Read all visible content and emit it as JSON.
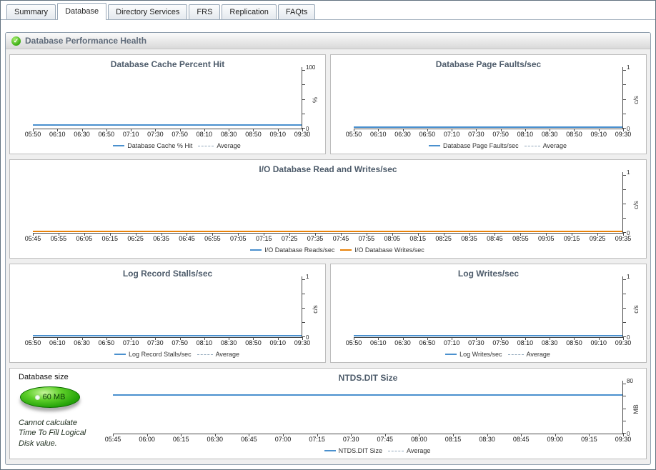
{
  "tabs": [
    {
      "label": "Summary",
      "active": false
    },
    {
      "label": "Database",
      "active": true
    },
    {
      "label": "Directory Services",
      "active": false
    },
    {
      "label": "FRS",
      "active": false
    },
    {
      "label": "Replication",
      "active": false
    },
    {
      "label": "FAQts",
      "active": false
    }
  ],
  "section": {
    "title": "Database Performance Health"
  },
  "colors": {
    "line_blue": "#4a90ce",
    "line_orange": "#e8820a",
    "average_dash": "#8fa6ba"
  },
  "database_size": {
    "label": "Database size",
    "gauge_value": "60 MB",
    "note": "Cannot calculate Time To Fill Logical Disk value."
  },
  "charts": {
    "cache_hit": {
      "type": "line",
      "title": "Database Cache Percent Hit",
      "y_min": 0,
      "y_max": 100,
      "y_unit": "%",
      "x": [
        "05:50",
        "06:10",
        "06:30",
        "06:50",
        "07:10",
        "07:30",
        "07:50",
        "08:10",
        "08:30",
        "08:50",
        "09:10",
        "09:30"
      ],
      "series": [
        {
          "name": "Database Cache % Hit",
          "color": "#4a90ce",
          "value": 4
        }
      ],
      "legend": [
        {
          "label": "Database Cache % Hit",
          "swatch": "solid",
          "color": "#4a90ce"
        },
        {
          "label": "Average",
          "swatch": "dashed",
          "color": "#8fa6ba"
        }
      ]
    },
    "page_faults": {
      "type": "line",
      "title": "Database Page Faults/sec",
      "y_min": 0,
      "y_max": 1,
      "y_unit": "c/s",
      "x": [
        "05:50",
        "06:10",
        "06:30",
        "06:50",
        "07:10",
        "07:30",
        "07:50",
        "08:10",
        "08:30",
        "08:50",
        "09:10",
        "09:30"
      ],
      "series": [
        {
          "name": "Database Page Faults/sec",
          "color": "#4a90ce",
          "value": 0
        }
      ],
      "legend": [
        {
          "label": "Database Page Faults/sec",
          "swatch": "solid",
          "color": "#4a90ce"
        },
        {
          "label": "Average",
          "swatch": "dashed",
          "color": "#8fa6ba"
        }
      ]
    },
    "io_rw": {
      "type": "line",
      "title": "I/O Database Read and Writes/sec",
      "y_min": 0,
      "y_max": 1,
      "y_unit": "c/s",
      "x": [
        "05:45",
        "05:55",
        "06:05",
        "06:15",
        "06:25",
        "06:35",
        "06:45",
        "06:55",
        "07:05",
        "07:15",
        "07:25",
        "07:35",
        "07:45",
        "07:55",
        "08:05",
        "08:15",
        "08:25",
        "08:35",
        "08:45",
        "08:55",
        "09:05",
        "09:15",
        "09:25",
        "09:35"
      ],
      "series": [
        {
          "name": "I/O Database Reads/sec",
          "color": "#4a90ce",
          "value": 0
        },
        {
          "name": "I/O Database Writes/sec",
          "color": "#e8820a",
          "value": 0
        }
      ],
      "legend": [
        {
          "label": "I/O Database Reads/sec",
          "swatch": "solid",
          "color": "#4a90ce"
        },
        {
          "label": "I/O Database Writes/sec",
          "swatch": "solid",
          "color": "#e8820a"
        }
      ]
    },
    "log_stalls": {
      "type": "line",
      "title": "Log Record Stalls/sec",
      "y_min": 0,
      "y_max": 1,
      "y_unit": "c/s",
      "x": [
        "05:50",
        "06:10",
        "06:30",
        "06:50",
        "07:10",
        "07:30",
        "07:50",
        "08:10",
        "08:30",
        "08:50",
        "09:10",
        "09:30"
      ],
      "series": [
        {
          "name": "Log Record Stalls/sec",
          "color": "#4a90ce",
          "value": 0
        }
      ],
      "legend": [
        {
          "label": "Log Record Stalls/sec",
          "swatch": "solid",
          "color": "#4a90ce"
        },
        {
          "label": "Average",
          "swatch": "dashed",
          "color": "#8fa6ba"
        }
      ]
    },
    "log_writes": {
      "type": "line",
      "title": "Log Writes/sec",
      "y_min": 0,
      "y_max": 1,
      "y_unit": "c/s",
      "x": [
        "05:50",
        "06:10",
        "06:30",
        "06:50",
        "07:10",
        "07:30",
        "07:50",
        "08:10",
        "08:30",
        "08:50",
        "09:10",
        "09:30"
      ],
      "series": [
        {
          "name": "Log Writes/sec",
          "color": "#4a90ce",
          "value": 0
        }
      ],
      "legend": [
        {
          "label": "Log Writes/sec",
          "swatch": "solid",
          "color": "#4a90ce"
        },
        {
          "label": "Average",
          "swatch": "dashed",
          "color": "#8fa6ba"
        }
      ]
    },
    "ntds_size": {
      "type": "line",
      "title": "NTDS.DIT Size",
      "y_min": 0,
      "y_max": 80,
      "y_unit": "MB",
      "x": [
        "05:45",
        "06:00",
        "06:15",
        "06:30",
        "06:45",
        "07:00",
        "07:15",
        "07:30",
        "07:45",
        "08:00",
        "08:15",
        "08:30",
        "08:45",
        "09:00",
        "09:15",
        "09:30"
      ],
      "series": [
        {
          "name": "NTDS.DIT Size",
          "color": "#4a90ce",
          "value": 60
        }
      ],
      "legend": [
        {
          "label": "NTDS.DIT Size",
          "swatch": "solid",
          "color": "#4a90ce"
        },
        {
          "label": "Average",
          "swatch": "dashed",
          "color": "#8fa6ba"
        }
      ]
    }
  }
}
